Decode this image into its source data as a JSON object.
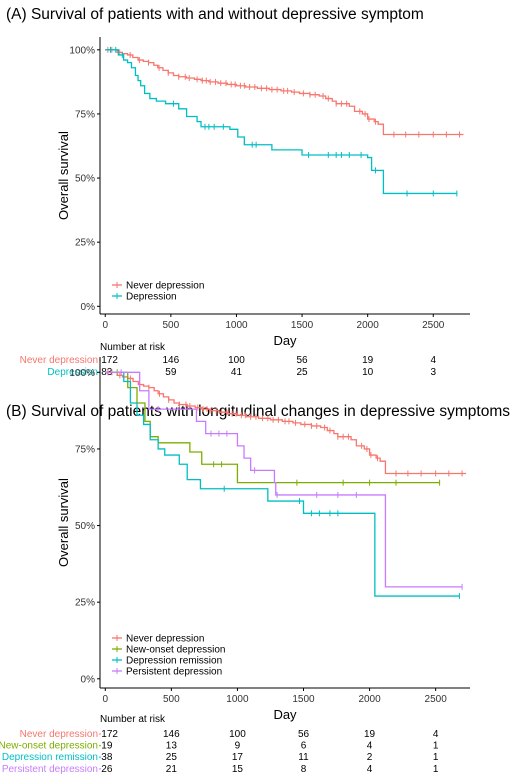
{
  "chart_data": [
    {
      "type": "line",
      "subtype": "kaplan-meier",
      "title": "(A) Survival of patients with and without depressive symptom",
      "xlabel": "Day",
      "ylabel": "Overall survival",
      "xlim": [
        -40,
        2780
      ],
      "ylim": [
        -0.03,
        1.05
      ],
      "xticks": [
        "0",
        "500",
        "1000",
        "1500",
        "2000",
        "2500"
      ],
      "yticks": [
        "0%",
        "25%",
        "50%",
        "75%",
        "100%"
      ],
      "grid": false,
      "legend_position": "bottom-left",
      "series": [
        {
          "name": "Never depression",
          "color": "#F8766D",
          "steps": [
            [
              0,
              1.0
            ],
            [
              60,
              1.0
            ],
            [
              90,
              0.99
            ],
            [
              130,
              0.985
            ],
            [
              170,
              0.98
            ],
            [
              210,
              0.97
            ],
            [
              250,
              0.96
            ],
            [
              290,
              0.955
            ],
            [
              330,
              0.95
            ],
            [
              370,
              0.94
            ],
            [
              400,
              0.93
            ],
            [
              440,
              0.92
            ],
            [
              480,
              0.91
            ],
            [
              520,
              0.9
            ],
            [
              560,
              0.895
            ],
            [
              620,
              0.89
            ],
            [
              680,
              0.885
            ],
            [
              730,
              0.88
            ],
            [
              790,
              0.875
            ],
            [
              860,
              0.87
            ],
            [
              930,
              0.865
            ],
            [
              1000,
              0.86
            ],
            [
              1070,
              0.855
            ],
            [
              1160,
              0.85
            ],
            [
              1250,
              0.845
            ],
            [
              1340,
              0.84
            ],
            [
              1420,
              0.835
            ],
            [
              1480,
              0.83
            ],
            [
              1560,
              0.825
            ],
            [
              1630,
              0.82
            ],
            [
              1680,
              0.81
            ],
            [
              1730,
              0.8
            ],
            [
              1760,
              0.79
            ],
            [
              1860,
              0.78
            ],
            [
              1900,
              0.76
            ],
            [
              1960,
              0.75
            ],
            [
              2000,
              0.73
            ],
            [
              2050,
              0.72
            ],
            [
              2080,
              0.71
            ],
            [
              2120,
              0.67
            ],
            [
              2730,
              0.67
            ]
          ],
          "censor_x": [
            20,
            50,
            110,
            190,
            260,
            330,
            410,
            480,
            560,
            610,
            640,
            700,
            740,
            770,
            800,
            840,
            880,
            920,
            960,
            990,
            1030,
            1060,
            1100,
            1140,
            1190,
            1230,
            1270,
            1310,
            1360,
            1390,
            1440,
            1510,
            1560,
            1600,
            1660,
            1700,
            1760,
            1800,
            1840,
            1940,
            1980,
            2010,
            2060,
            2200,
            2290,
            2390,
            2500,
            2600,
            2700
          ],
          "risk": [
            "172",
            "146",
            "100",
            "56",
            "19",
            "4"
          ]
        },
        {
          "name": "Depression",
          "color": "#00BFC4",
          "steps": [
            [
              0,
              1.0
            ],
            [
              70,
              1.0
            ],
            [
              100,
              0.98
            ],
            [
              140,
              0.96
            ],
            [
              170,
              0.95
            ],
            [
              200,
              0.93
            ],
            [
              230,
              0.9
            ],
            [
              250,
              0.88
            ],
            [
              270,
              0.86
            ],
            [
              300,
              0.83
            ],
            [
              340,
              0.81
            ],
            [
              390,
              0.8
            ],
            [
              460,
              0.79
            ],
            [
              560,
              0.77
            ],
            [
              620,
              0.74
            ],
            [
              700,
              0.72
            ],
            [
              730,
              0.7
            ],
            [
              860,
              0.7
            ],
            [
              950,
              0.69
            ],
            [
              1010,
              0.66
            ],
            [
              1060,
              0.63
            ],
            [
              1270,
              0.61
            ],
            [
              1500,
              0.59
            ],
            [
              2000,
              0.58
            ],
            [
              2030,
              0.53
            ],
            [
              2120,
              0.44
            ],
            [
              2680,
              0.44
            ]
          ],
          "censor_x": [
            40,
            80,
            130,
            520,
            760,
            790,
            830,
            900,
            1120,
            1150,
            1550,
            1700,
            1760,
            1800,
            1860,
            1950,
            2060,
            2300,
            2500,
            2680
          ],
          "risk": [
            "83",
            "59",
            "41",
            "25",
            "10",
            "3"
          ]
        }
      ],
      "risk_table": {
        "title": "Number at risk",
        "time_points": [
          0,
          500,
          1000,
          1500,
          2000,
          2500
        ]
      }
    },
    {
      "type": "line",
      "subtype": "kaplan-meier",
      "title": "(B) Survival of patients with longitudinal changes in depressive symptoms",
      "xlabel": "Day",
      "ylabel": "Overall survival",
      "xlim": [
        -40,
        2760
      ],
      "ylim": [
        -0.03,
        1.05
      ],
      "xticks": [
        "0",
        "500",
        "1000",
        "1500",
        "2000",
        "2500"
      ],
      "yticks": [
        "0%",
        "25%",
        "50%",
        "75%",
        "100%"
      ],
      "grid": false,
      "legend_position": "bottom-left",
      "series": [
        {
          "name": "Never depression",
          "color": "#F8766D",
          "steps": [
            [
              0,
              1.0
            ],
            [
              60,
              1.0
            ],
            [
              90,
              0.99
            ],
            [
              130,
              0.985
            ],
            [
              170,
              0.98
            ],
            [
              210,
              0.97
            ],
            [
              250,
              0.96
            ],
            [
              290,
              0.955
            ],
            [
              330,
              0.95
            ],
            [
              370,
              0.94
            ],
            [
              400,
              0.93
            ],
            [
              440,
              0.92
            ],
            [
              480,
              0.91
            ],
            [
              520,
              0.9
            ],
            [
              560,
              0.895
            ],
            [
              620,
              0.89
            ],
            [
              680,
              0.885
            ],
            [
              730,
              0.88
            ],
            [
              790,
              0.875
            ],
            [
              860,
              0.87
            ],
            [
              930,
              0.865
            ],
            [
              1000,
              0.86
            ],
            [
              1070,
              0.855
            ],
            [
              1160,
              0.85
            ],
            [
              1250,
              0.845
            ],
            [
              1340,
              0.84
            ],
            [
              1420,
              0.835
            ],
            [
              1480,
              0.83
            ],
            [
              1560,
              0.825
            ],
            [
              1630,
              0.82
            ],
            [
              1680,
              0.81
            ],
            [
              1730,
              0.8
            ],
            [
              1760,
              0.79
            ],
            [
              1860,
              0.78
            ],
            [
              1900,
              0.76
            ],
            [
              1960,
              0.75
            ],
            [
              2000,
              0.73
            ],
            [
              2050,
              0.72
            ],
            [
              2080,
              0.71
            ],
            [
              2120,
              0.67
            ],
            [
              2730,
              0.67
            ]
          ],
          "censor_x": [
            20,
            50,
            110,
            190,
            260,
            330,
            410,
            480,
            560,
            610,
            640,
            700,
            740,
            770,
            800,
            840,
            880,
            920,
            960,
            990,
            1030,
            1060,
            1100,
            1140,
            1190,
            1230,
            1270,
            1310,
            1360,
            1390,
            1440,
            1510,
            1560,
            1600,
            1660,
            1700,
            1760,
            1800,
            1840,
            1940,
            1980,
            2010,
            2060,
            2200,
            2290,
            2390,
            2500,
            2600,
            2700
          ],
          "risk": [
            "172",
            "146",
            "100",
            "56",
            "19",
            "4"
          ]
        },
        {
          "name": "New-onset depression",
          "color": "#7CAE00",
          "steps": [
            [
              0,
              1.0
            ],
            [
              130,
              1.0
            ],
            [
              170,
              0.95
            ],
            [
              240,
              0.9
            ],
            [
              300,
              0.84
            ],
            [
              340,
              0.79
            ],
            [
              400,
              0.77
            ],
            [
              640,
              0.74
            ],
            [
              730,
              0.7
            ],
            [
              1000,
              0.64
            ],
            [
              2530,
              0.64
            ]
          ],
          "censor_x": [
            90,
            820,
            880,
            1450,
            1800,
            2000,
            2200,
            2530
          ],
          "risk": [
            "19",
            "13",
            "9",
            "6",
            "4",
            "1"
          ]
        },
        {
          "name": "Depression remission",
          "color": "#00BFC4",
          "steps": [
            [
              0,
              1.0
            ],
            [
              100,
              1.0
            ],
            [
              140,
              0.97
            ],
            [
              190,
              0.9
            ],
            [
              240,
              0.86
            ],
            [
              290,
              0.83
            ],
            [
              340,
              0.78
            ],
            [
              400,
              0.75
            ],
            [
              450,
              0.73
            ],
            [
              560,
              0.7
            ],
            [
              620,
              0.65
            ],
            [
              720,
              0.62
            ],
            [
              1070,
              0.62
            ],
            [
              1230,
              0.58
            ],
            [
              1500,
              0.54
            ],
            [
              2040,
              0.27
            ],
            [
              2680,
              0.27
            ]
          ],
          "censor_x": [
            900,
            1470,
            1560,
            1620,
            1700,
            1760,
            2680
          ],
          "risk": [
            "38",
            "25",
            "17",
            "11",
            "2",
            "1"
          ]
        },
        {
          "name": "Persistent depression",
          "color": "#C77CFF",
          "steps": [
            [
              0,
              1.0
            ],
            [
              200,
              1.0
            ],
            [
              260,
              0.94
            ],
            [
              330,
              0.88
            ],
            [
              690,
              0.84
            ],
            [
              760,
              0.8
            ],
            [
              1000,
              0.76
            ],
            [
              1050,
              0.72
            ],
            [
              1100,
              0.68
            ],
            [
              1280,
              0.64
            ],
            [
              1290,
              0.6
            ],
            [
              2120,
              0.3
            ],
            [
              2700,
              0.3
            ]
          ],
          "censor_x": [
            120,
            400,
            800,
            860,
            920,
            1130,
            1300,
            1600,
            1760,
            1900,
            2700
          ],
          "risk": [
            "26",
            "21",
            "15",
            "8",
            "4",
            "1"
          ]
        }
      ],
      "risk_table": {
        "title": "Number at risk",
        "time_points": [
          0,
          500,
          1000,
          1500,
          2000,
          2500
        ]
      }
    }
  ]
}
